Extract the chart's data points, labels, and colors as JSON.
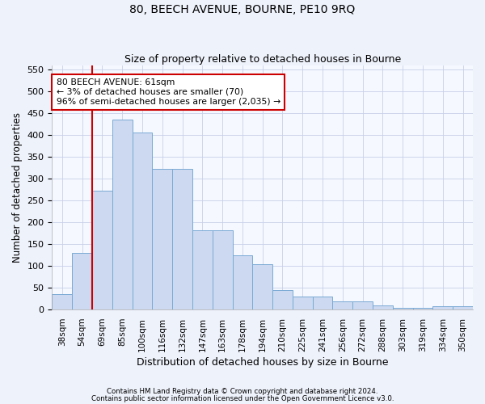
{
  "title": "80, BEECH AVENUE, BOURNE, PE10 9RQ",
  "subtitle": "Size of property relative to detached houses in Bourne",
  "xlabel": "Distribution of detached houses by size in Bourne",
  "ylabel": "Number of detached properties",
  "categories": [
    "38sqm",
    "54sqm",
    "69sqm",
    "85sqm",
    "100sqm",
    "116sqm",
    "132sqm",
    "147sqm",
    "163sqm",
    "178sqm",
    "194sqm",
    "210sqm",
    "225sqm",
    "241sqm",
    "256sqm",
    "272sqm",
    "288sqm",
    "303sqm",
    "319sqm",
    "334sqm",
    "350sqm"
  ],
  "bar_values": [
    35,
    130,
    272,
    435,
    405,
    322,
    322,
    182,
    182,
    125,
    104,
    45,
    30,
    30,
    18,
    18,
    10,
    5,
    5,
    7,
    7
  ],
  "bar_color": "#ccd9f0",
  "bar_edge_color": "#7aaad4",
  "vline_x": 1.5,
  "vline_color": "#cc0000",
  "annotation_text": "80 BEECH AVENUE: 61sqm\n← 3% of detached houses are smaller (70)\n96% of semi-detached houses are larger (2,035) →",
  "annotation_box_color": "#ffffff",
  "annotation_box_edge": "#cc0000",
  "ylim": [
    0,
    560
  ],
  "yticks": [
    0,
    50,
    100,
    150,
    200,
    250,
    300,
    350,
    400,
    450,
    500,
    550
  ],
  "footer1": "Contains HM Land Registry data © Crown copyright and database right 2024.",
  "footer2": "Contains public sector information licensed under the Open Government Licence v3.0.",
  "bg_color": "#eef2fb",
  "plot_bg_color": "#f5f8ff"
}
